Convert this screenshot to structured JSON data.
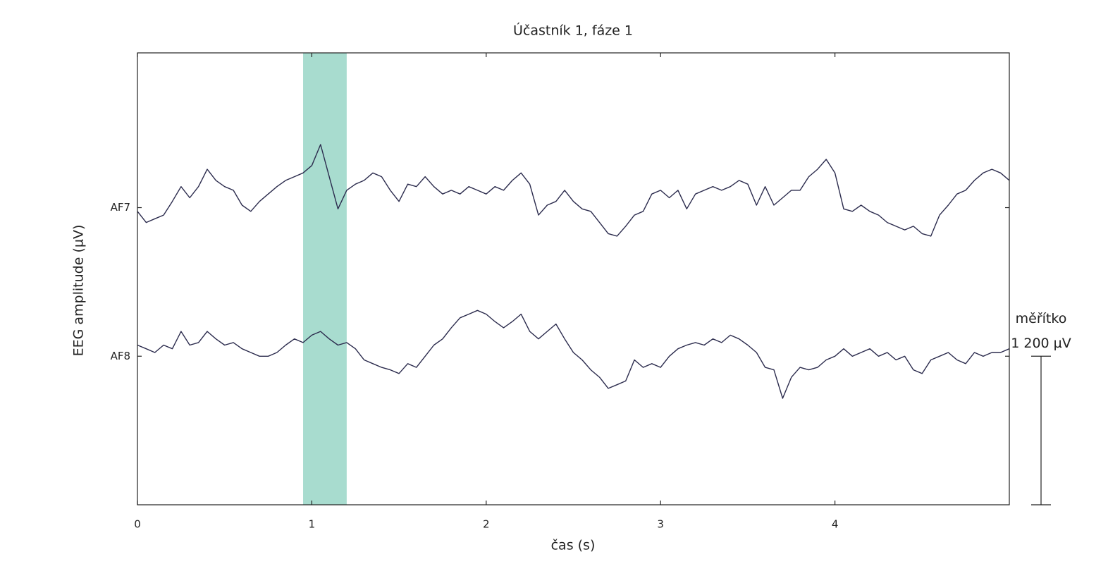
{
  "chart_data": {
    "type": "line",
    "title": "Účastník 1, fáze 1",
    "x_label": "čas (s)",
    "y_label": "EEG amplitude (µV)",
    "xlim": [
      0,
      5
    ],
    "xticks": [
      0,
      1,
      2,
      3,
      4
    ],
    "ylim": [
      -1200,
      2450
    ],
    "yticks": [
      {
        "value": 1200,
        "label": "AF7"
      },
      {
        "value": 0,
        "label": "AF8"
      }
    ],
    "highlight": {
      "x": [
        0.95,
        1.2
      ],
      "color": "#a8dccf"
    },
    "scale_bar": {
      "label": "měřítko",
      "value": 1200,
      "value_label": "1 200 µV"
    },
    "x": [
      0,
      0.05,
      0.1,
      0.15,
      0.2,
      0.25,
      0.3,
      0.35,
      0.4,
      0.45,
      0.5,
      0.55,
      0.6,
      0.65,
      0.7,
      0.75,
      0.8,
      0.85,
      0.9,
      0.95,
      1,
      1.05,
      1.1,
      1.15,
      1.2,
      1.25,
      1.3,
      1.35,
      1.4,
      1.45,
      1.5,
      1.55,
      1.6,
      1.65,
      1.7,
      1.75,
      1.8,
      1.85,
      1.9,
      1.95,
      2,
      2.05,
      2.1,
      2.15,
      2.2,
      2.25,
      2.3,
      2.35,
      2.4,
      2.45,
      2.5,
      2.55,
      2.6,
      2.65,
      2.7,
      2.75,
      2.8,
      2.85,
      2.9,
      2.95,
      3,
      3.05,
      3.1,
      3.15,
      3.2,
      3.25,
      3.3,
      3.35,
      3.4,
      3.45,
      3.5,
      3.55,
      3.6,
      3.65,
      3.7,
      3.75,
      3.8,
      3.85,
      3.9,
      3.95,
      4,
      4.05,
      4.1,
      4.15,
      4.2,
      4.25,
      4.3,
      4.35,
      4.4,
      4.45,
      4.5,
      4.55,
      4.6,
      4.65,
      4.7,
      4.75,
      4.8,
      4.85,
      4.9,
      4.95,
      5
    ],
    "series": [
      {
        "color": "#2b2b4d",
        "values": [
          1170,
          1080,
          1110,
          1140,
          1250,
          1370,
          1280,
          1370,
          1510,
          1420,
          1370,
          1340,
          1220,
          1170,
          1250,
          1310,
          1370,
          1420,
          1450,
          1480,
          1540,
          1710,
          1450,
          1190,
          1340,
          1390,
          1420,
          1480,
          1450,
          1340,
          1250,
          1390,
          1370,
          1450,
          1370,
          1310,
          1340,
          1310,
          1370,
          1340,
          1310,
          1370,
          1340,
          1420,
          1480,
          1390,
          1140,
          1220,
          1250,
          1340,
          1250,
          1190,
          1170,
          1080,
          990,
          970,
          1050,
          1140,
          1170,
          1310,
          1340,
          1280,
          1340,
          1190,
          1310,
          1340,
          1370,
          1340,
          1370,
          1420,
          1390,
          1220,
          1370,
          1220,
          1280,
          1340,
          1340,
          1450,
          1510,
          1590,
          1480,
          1190,
          1170,
          1220,
          1170,
          1140,
          1080,
          1050,
          1020,
          1050,
          990,
          970,
          1140,
          1220,
          1310,
          1340,
          1420,
          1480,
          1510,
          1480,
          1420
        ]
      },
      {
        "color": "#2b2b4d",
        "values": [
          90,
          60,
          30,
          90,
          60,
          200,
          90,
          110,
          200,
          140,
          90,
          110,
          60,
          30,
          0,
          0,
          30,
          90,
          140,
          110,
          170,
          200,
          140,
          90,
          110,
          60,
          -30,
          -60,
          -90,
          -110,
          -140,
          -60,
          -90,
          0,
          90,
          140,
          230,
          310,
          340,
          370,
          340,
          280,
          230,
          280,
          340,
          200,
          140,
          200,
          260,
          140,
          30,
          -30,
          -110,
          -170,
          -260,
          -230,
          -200,
          -30,
          -90,
          -60,
          -90,
          0,
          60,
          90,
          110,
          90,
          140,
          110,
          170,
          140,
          90,
          30,
          -90,
          -110,
          -340,
          -170,
          -90,
          -110,
          -90,
          -30,
          0,
          60,
          0,
          30,
          60,
          0,
          30,
          -30,
          0,
          -110,
          -140,
          -30,
          0,
          30,
          -30,
          -60,
          30,
          0,
          30,
          30,
          60
        ]
      }
    ]
  }
}
